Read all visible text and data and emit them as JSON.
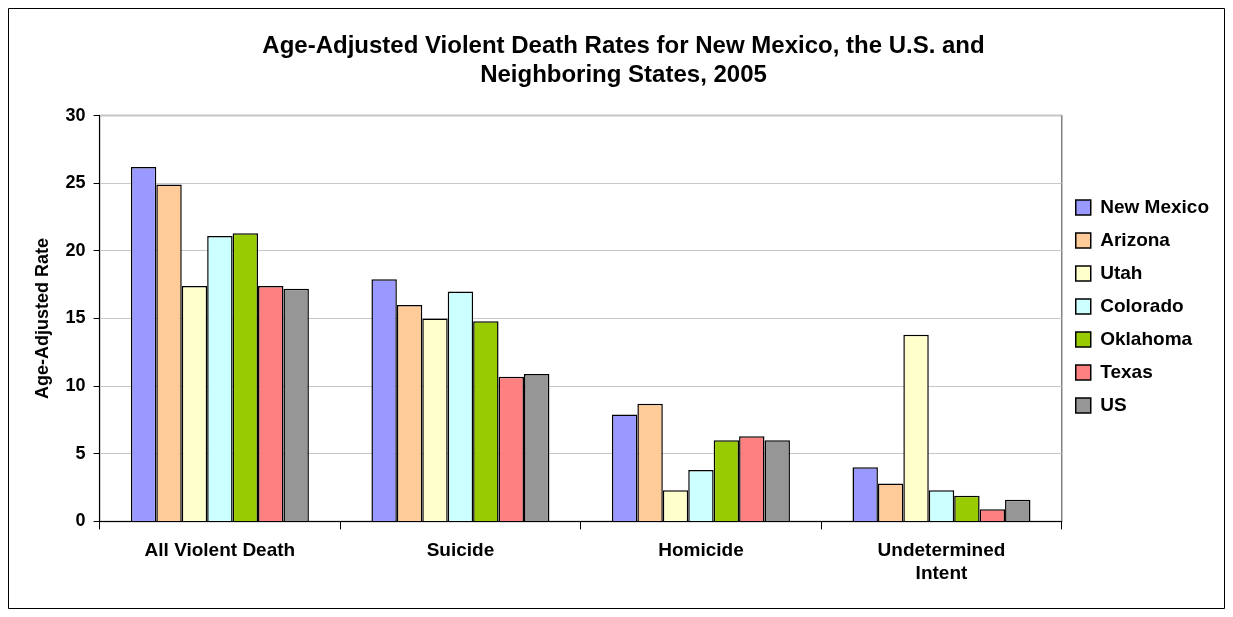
{
  "chart_data": {
    "type": "bar",
    "title": "Age-Adjusted Violent Death Rates for New Mexico, the U.S. and Neighboring States, 2005",
    "ylabel": "Age-Adjusted Rate",
    "categories": [
      "All Violent Death",
      "Suicide",
      "Homicide",
      "Undetermined Intent"
    ],
    "series": [
      {
        "name": "New Mexico",
        "color": "#9999ff",
        "values": [
          26.2,
          17.9,
          7.9,
          4.0
        ]
      },
      {
        "name": "Arizona",
        "color": "#ffcc99",
        "values": [
          24.9,
          16.0,
          8.7,
          2.8
        ]
      },
      {
        "name": "Utah",
        "color": "#ffffcc",
        "values": [
          17.4,
          15.0,
          2.3,
          13.8
        ]
      },
      {
        "name": "Colorado",
        "color": "#ccffff",
        "values": [
          21.1,
          17.0,
          3.8,
          2.3
        ]
      },
      {
        "name": "Oklahoma",
        "color": "#99cc00",
        "values": [
          21.3,
          14.8,
          6.0,
          1.9
        ]
      },
      {
        "name": "Texas",
        "color": "#ff8080",
        "values": [
          17.4,
          10.7,
          6.3,
          0.9
        ]
      },
      {
        "name": "US",
        "color": "#969696",
        "values": [
          17.2,
          10.9,
          6.0,
          1.6
        ]
      }
    ],
    "ylim": [
      0,
      30
    ],
    "yticks": [
      0,
      5,
      10,
      15,
      20,
      25,
      30
    ],
    "grid": "y",
    "legend": "right"
  }
}
